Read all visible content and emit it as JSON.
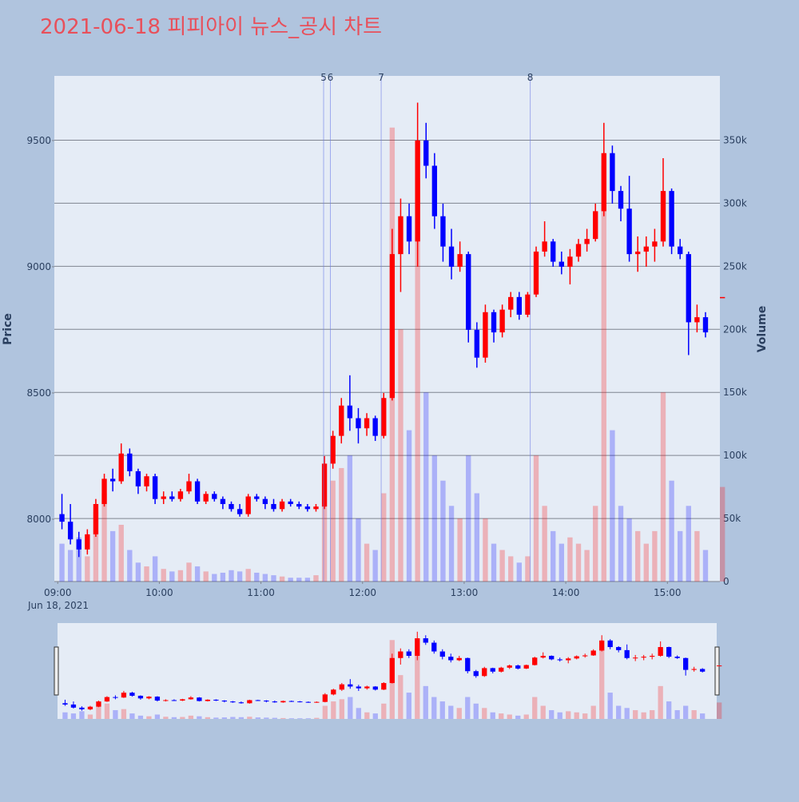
{
  "chart_data": {
    "type": "candlestick",
    "title": "2021-06-18 피피아이 뉴스_공시 차트",
    "y_label": "Price",
    "y2_label": "Volume",
    "x_date_label": "Jun 18, 2021",
    "increasing_color": "#ff0000",
    "decreasing_color": "#0000ff",
    "grid": true,
    "xlim": [
      "08:58",
      "15:31"
    ],
    "xticks": [
      "09:00",
      "10:00",
      "11:00",
      "12:00",
      "13:00",
      "14:00",
      "15:00"
    ],
    "ylim": [
      7753,
      9756
    ],
    "yticks": [
      8000,
      8500,
      9000,
      9500
    ],
    "y2lim": [
      0,
      401000
    ],
    "y2ticks": [
      0,
      {
        "value": 50000,
        "label": "50k"
      },
      {
        "value": 100000,
        "label": "100k"
      },
      {
        "value": 150000,
        "label": "150k"
      },
      {
        "value": 200000,
        "label": "200k"
      },
      {
        "value": 250000,
        "label": "250k"
      },
      {
        "value": 300000,
        "label": "300k"
      },
      {
        "value": 350000,
        "label": "350k"
      }
    ],
    "annotations": [
      {
        "x": "11:37",
        "label": "5"
      },
      {
        "x": "11:41",
        "label": "6"
      },
      {
        "x": "12:11",
        "label": "7"
      },
      {
        "x": "13:39",
        "label": "8"
      }
    ],
    "x": [
      "09:00",
      "09:05",
      "09:10",
      "09:15",
      "09:20",
      "09:25",
      "09:30",
      "09:35",
      "09:40",
      "09:45",
      "09:50",
      "09:55",
      "10:00",
      "10:05",
      "10:10",
      "10:15",
      "10:20",
      "10:25",
      "10:30",
      "10:35",
      "10:40",
      "10:45",
      "10:50",
      "10:55",
      "11:00",
      "11:05",
      "11:10",
      "11:15",
      "11:20",
      "11:25",
      "11:30",
      "11:35",
      "11:40",
      "11:45",
      "11:50",
      "11:55",
      "12:00",
      "12:05",
      "12:10",
      "12:15",
      "12:20",
      "12:25",
      "12:30",
      "12:35",
      "12:40",
      "12:45",
      "12:50",
      "12:55",
      "13:00",
      "13:05",
      "13:10",
      "13:15",
      "13:20",
      "13:25",
      "13:30",
      "13:35",
      "13:40",
      "13:45",
      "13:50",
      "13:55",
      "14:00",
      "14:05",
      "14:10",
      "14:15",
      "14:20",
      "14:25",
      "14:30",
      "14:35",
      "14:40",
      "14:45",
      "14:50",
      "14:55",
      "15:00",
      "15:05",
      "15:10",
      "15:15",
      "15:20",
      "15:30"
    ],
    "open": [
      8020,
      7990,
      7920,
      7880,
      7940,
      8060,
      8160,
      8150,
      8260,
      8190,
      8130,
      8170,
      8080,
      8090,
      8080,
      8110,
      8150,
      8070,
      8100,
      8080,
      8060,
      8040,
      8020,
      8090,
      8080,
      8060,
      8040,
      8070,
      8060,
      8050,
      8040,
      8050,
      8220,
      8330,
      8450,
      8400,
      8360,
      8400,
      8330,
      8480,
      9050,
      9200,
      9100,
      9500,
      9400,
      9200,
      9080,
      9000,
      9050,
      8750,
      8640,
      8820,
      8740,
      8830,
      8880,
      8810,
      8890,
      9060,
      9100,
      9020,
      9000,
      9040,
      9090,
      9110,
      9220,
      9450,
      9300,
      9230,
      9050,
      9060,
      9080,
      9100,
      9300,
      9080,
      9050,
      8780,
      8800,
      8880
    ],
    "high": [
      8100,
      8060,
      7950,
      7960,
      8080,
      8180,
      8200,
      8300,
      8280,
      8200,
      8180,
      8180,
      8110,
      8110,
      8120,
      8180,
      8160,
      8110,
      8110,
      8090,
      8070,
      8060,
      8100,
      8100,
      8090,
      8080,
      8080,
      8080,
      8070,
      8060,
      8060,
      8250,
      8350,
      8480,
      8570,
      8440,
      8420,
      8410,
      8500,
      9150,
      9270,
      9250,
      9650,
      9570,
      9450,
      9250,
      9150,
      9100,
      9060,
      8780,
      8850,
      8830,
      8850,
      8900,
      8900,
      8900,
      9080,
      9180,
      9110,
      9060,
      9070,
      9110,
      9150,
      9250,
      9570,
      9480,
      9320,
      9360,
      9120,
      9120,
      9150,
      9430,
      9310,
      9110,
      9060,
      8850,
      8820,
      8880
    ],
    "low": [
      7960,
      7900,
      7850,
      7860,
      7930,
      8050,
      8110,
      8140,
      8170,
      8100,
      8110,
      8060,
      8060,
      8070,
      8070,
      8100,
      8060,
      8060,
      8070,
      8040,
      8030,
      8010,
      8010,
      8070,
      8040,
      8030,
      8030,
      8050,
      8040,
      8030,
      8030,
      8040,
      8200,
      8300,
      8350,
      8300,
      8330,
      8310,
      8320,
      8470,
      8900,
      9050,
      9000,
      9350,
      9150,
      9020,
      8950,
      8980,
      8700,
      8600,
      8620,
      8700,
      8720,
      8800,
      8790,
      8800,
      8880,
      9040,
      9000,
      8970,
      8930,
      9020,
      9060,
      9100,
      9200,
      9250,
      9180,
      9020,
      8980,
      9000,
      9020,
      9080,
      9050,
      9030,
      8650,
      8740,
      8720,
      8880
    ],
    "close": [
      7990,
      7920,
      7880,
      7940,
      8060,
      8160,
      8150,
      8260,
      8190,
      8130,
      8170,
      8080,
      8090,
      8080,
      8110,
      8150,
      8070,
      8100,
      8080,
      8060,
      8040,
      8020,
      8090,
      8080,
      8060,
      8040,
      8070,
      8060,
      8050,
      8040,
      8050,
      8220,
      8330,
      8450,
      8400,
      8360,
      8400,
      8330,
      8480,
      9050,
      9200,
      9100,
      9500,
      9400,
      9200,
      9080,
      9000,
      9050,
      8750,
      8640,
      8820,
      8740,
      8830,
      8880,
      8810,
      8890,
      9060,
      9100,
      9020,
      9000,
      9040,
      9090,
      9110,
      9220,
      9450,
      9300,
      9230,
      9050,
      9060,
      9080,
      9100,
      9300,
      9080,
      9050,
      8780,
      8800,
      8740,
      8880
    ],
    "volume": [
      30000,
      25000,
      35000,
      20000,
      55000,
      70000,
      40000,
      45000,
      25000,
      15000,
      12000,
      20000,
      10000,
      8000,
      9000,
      15000,
      12000,
      8000,
      6000,
      7000,
      9000,
      8000,
      10000,
      7000,
      6000,
      5000,
      4000,
      3000,
      3000,
      3000,
      5000,
      60000,
      80000,
      90000,
      100000,
      50000,
      30000,
      25000,
      70000,
      360000,
      200000,
      120000,
      320000,
      150000,
      100000,
      80000,
      60000,
      50000,
      100000,
      70000,
      50000,
      30000,
      25000,
      20000,
      15000,
      20000,
      100000,
      60000,
      40000,
      30000,
      35000,
      30000,
      25000,
      60000,
      330000,
      120000,
      60000,
      50000,
      40000,
      30000,
      40000,
      150000,
      80000,
      40000,
      60000,
      40000,
      25000,
      75000
    ]
  }
}
